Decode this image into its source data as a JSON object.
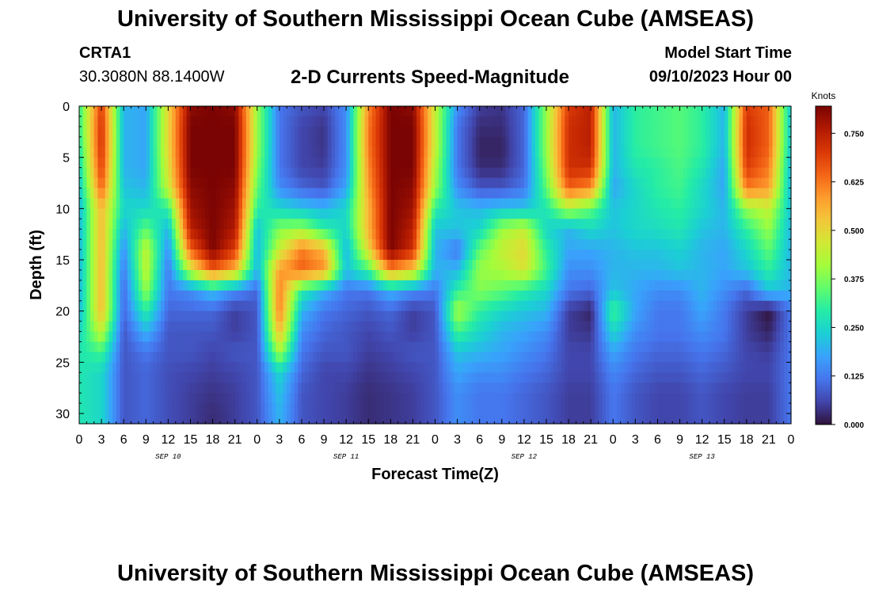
{
  "header": {
    "title": "University of Southern Mississippi Ocean Cube (AMSEAS)",
    "station": "CRTA1",
    "coordinates": "30.3080N  88.1400W",
    "subtitle": "2-D Currents Speed-Magnitude",
    "model_start_label": "Model Start Time",
    "model_start_value": "09/10/2023 Hour 00"
  },
  "footer": {
    "title": "University of Southern Mississippi Ocean Cube (AMSEAS)"
  },
  "chart_data": {
    "type": "heatmap",
    "xlabel": "Forecast Time(Z)",
    "ylabel": "Depth (ft)",
    "x_tick_labels": [
      "0",
      "3",
      "6",
      "9",
      "12",
      "15",
      "18",
      "21",
      "0",
      "3",
      "6",
      "9",
      "12",
      "15",
      "18",
      "21",
      "0",
      "3",
      "6",
      "9",
      "12",
      "15",
      "18",
      "21",
      "0",
      "3",
      "6",
      "9",
      "12",
      "15",
      "18",
      "21",
      "0"
    ],
    "x_range_hours": [
      0,
      96
    ],
    "date_labels": [
      {
        "label": "SEP 10",
        "hour": 12
      },
      {
        "label": "SEP 11",
        "hour": 36
      },
      {
        "label": "SEP 12",
        "hour": 60
      },
      {
        "label": "SEP 13",
        "hour": 84
      }
    ],
    "y_ticks": [
      0,
      5,
      10,
      15,
      20,
      25,
      30
    ],
    "y_range": [
      0,
      31
    ],
    "y_inverted": true,
    "colorbar": {
      "units": "Knots",
      "range": [
        0,
        0.82
      ],
      "ticks": [
        "0.000",
        "0.125",
        "0.250",
        "0.375",
        "0.500",
        "0.625",
        "0.750"
      ],
      "tick_values": [
        0,
        0.125,
        0.25,
        0.375,
        0.5,
        0.625,
        0.75
      ],
      "colormap": [
        "#30123b",
        "#4145ab",
        "#4675ed",
        "#39a2fc",
        "#1bcfd4",
        "#24eca6",
        "#61fc6c",
        "#a4fc3b",
        "#d1e834",
        "#f3c63a",
        "#fe9b2d",
        "#f36315",
        "#d93806",
        "#b11901",
        "#7a0403"
      ]
    },
    "depth_rows": [
      0,
      2,
      4,
      6,
      8,
      10,
      12,
      14,
      16,
      18,
      20,
      22,
      24,
      26,
      28,
      30
    ],
    "time_cols_hours": [
      0,
      3,
      6,
      9,
      12,
      15,
      18,
      21,
      24,
      27,
      30,
      33,
      36,
      39,
      42,
      45,
      48,
      51,
      54,
      57,
      60,
      63,
      66,
      69,
      72,
      75,
      78,
      81,
      84,
      87,
      90,
      93,
      96
    ],
    "speed_knots": [
      [
        0.3,
        0.7,
        0.2,
        0.18,
        0.5,
        0.8,
        0.82,
        0.8,
        0.4,
        0.12,
        0.08,
        0.06,
        0.15,
        0.6,
        0.82,
        0.8,
        0.45,
        0.15,
        0.05,
        0.04,
        0.1,
        0.4,
        0.7,
        0.75,
        0.2,
        0.3,
        0.32,
        0.34,
        0.3,
        0.2,
        0.7,
        0.65,
        0.22
      ],
      [
        0.3,
        0.72,
        0.2,
        0.18,
        0.5,
        0.82,
        0.82,
        0.82,
        0.4,
        0.12,
        0.06,
        0.04,
        0.15,
        0.62,
        0.82,
        0.82,
        0.45,
        0.12,
        0.03,
        0.03,
        0.1,
        0.4,
        0.72,
        0.75,
        0.2,
        0.3,
        0.32,
        0.34,
        0.3,
        0.2,
        0.72,
        0.65,
        0.22
      ],
      [
        0.28,
        0.72,
        0.2,
        0.18,
        0.5,
        0.82,
        0.82,
        0.82,
        0.4,
        0.12,
        0.06,
        0.04,
        0.15,
        0.62,
        0.82,
        0.82,
        0.45,
        0.12,
        0.02,
        0.02,
        0.1,
        0.4,
        0.72,
        0.75,
        0.2,
        0.3,
        0.32,
        0.34,
        0.3,
        0.2,
        0.72,
        0.65,
        0.22
      ],
      [
        0.25,
        0.7,
        0.2,
        0.18,
        0.48,
        0.82,
        0.82,
        0.82,
        0.38,
        0.12,
        0.06,
        0.05,
        0.15,
        0.6,
        0.82,
        0.82,
        0.42,
        0.12,
        0.03,
        0.03,
        0.1,
        0.38,
        0.72,
        0.72,
        0.2,
        0.28,
        0.3,
        0.33,
        0.28,
        0.18,
        0.7,
        0.62,
        0.2
      ],
      [
        0.22,
        0.65,
        0.22,
        0.2,
        0.45,
        0.8,
        0.82,
        0.8,
        0.35,
        0.15,
        0.1,
        0.08,
        0.18,
        0.58,
        0.82,
        0.8,
        0.4,
        0.15,
        0.08,
        0.08,
        0.12,
        0.35,
        0.65,
        0.6,
        0.18,
        0.25,
        0.3,
        0.32,
        0.25,
        0.18,
        0.62,
        0.58,
        0.2
      ],
      [
        0.2,
        0.55,
        0.25,
        0.25,
        0.3,
        0.78,
        0.82,
        0.78,
        0.3,
        0.25,
        0.22,
        0.2,
        0.25,
        0.55,
        0.82,
        0.78,
        0.3,
        0.22,
        0.2,
        0.22,
        0.22,
        0.28,
        0.42,
        0.35,
        0.22,
        0.25,
        0.28,
        0.3,
        0.25,
        0.2,
        0.4,
        0.45,
        0.22
      ],
      [
        0.2,
        0.55,
        0.2,
        0.35,
        0.2,
        0.75,
        0.82,
        0.76,
        0.22,
        0.38,
        0.4,
        0.3,
        0.25,
        0.55,
        0.82,
        0.75,
        0.22,
        0.22,
        0.25,
        0.4,
        0.45,
        0.25,
        0.2,
        0.25,
        0.22,
        0.25,
        0.26,
        0.28,
        0.22,
        0.2,
        0.3,
        0.4,
        0.2
      ],
      [
        0.2,
        0.55,
        0.15,
        0.45,
        0.15,
        0.65,
        0.82,
        0.7,
        0.2,
        0.45,
        0.62,
        0.55,
        0.2,
        0.5,
        0.82,
        0.72,
        0.2,
        0.12,
        0.35,
        0.45,
        0.5,
        0.3,
        0.18,
        0.18,
        0.2,
        0.22,
        0.22,
        0.24,
        0.2,
        0.18,
        0.25,
        0.35,
        0.2
      ],
      [
        0.2,
        0.55,
        0.12,
        0.45,
        0.12,
        0.45,
        0.65,
        0.55,
        0.2,
        0.58,
        0.65,
        0.6,
        0.22,
        0.32,
        0.6,
        0.52,
        0.2,
        0.2,
        0.4,
        0.42,
        0.48,
        0.32,
        0.15,
        0.15,
        0.2,
        0.2,
        0.2,
        0.22,
        0.2,
        0.18,
        0.22,
        0.3,
        0.2
      ],
      [
        0.2,
        0.55,
        0.1,
        0.4,
        0.12,
        0.15,
        0.22,
        0.15,
        0.1,
        0.62,
        0.3,
        0.2,
        0.12,
        0.12,
        0.2,
        0.15,
        0.12,
        0.3,
        0.38,
        0.35,
        0.3,
        0.25,
        0.12,
        0.1,
        0.22,
        0.18,
        0.15,
        0.15,
        0.2,
        0.15,
        0.1,
        0.22,
        0.2
      ],
      [
        0.2,
        0.55,
        0.1,
        0.3,
        0.1,
        0.1,
        0.1,
        0.05,
        0.08,
        0.62,
        0.2,
        0.12,
        0.1,
        0.08,
        0.1,
        0.05,
        0.08,
        0.42,
        0.3,
        0.25,
        0.22,
        0.2,
        0.05,
        0.02,
        0.32,
        0.18,
        0.12,
        0.12,
        0.18,
        0.12,
        0.05,
        0.0,
        0.12
      ],
      [
        0.25,
        0.45,
        0.08,
        0.2,
        0.08,
        0.08,
        0.08,
        0.05,
        0.08,
        0.55,
        0.15,
        0.1,
        0.08,
        0.06,
        0.08,
        0.05,
        0.08,
        0.32,
        0.25,
        0.2,
        0.18,
        0.15,
        0.05,
        0.04,
        0.25,
        0.15,
        0.12,
        0.12,
        0.15,
        0.12,
        0.05,
        0.02,
        0.12
      ],
      [
        0.28,
        0.32,
        0.08,
        0.12,
        0.08,
        0.08,
        0.06,
        0.08,
        0.08,
        0.42,
        0.12,
        0.08,
        0.08,
        0.05,
        0.06,
        0.08,
        0.08,
        0.22,
        0.2,
        0.18,
        0.15,
        0.12,
        0.06,
        0.06,
        0.18,
        0.12,
        0.1,
        0.1,
        0.12,
        0.1,
        0.06,
        0.05,
        0.12
      ],
      [
        0.28,
        0.25,
        0.08,
        0.1,
        0.07,
        0.06,
        0.05,
        0.06,
        0.08,
        0.25,
        0.1,
        0.06,
        0.06,
        0.04,
        0.05,
        0.06,
        0.08,
        0.18,
        0.15,
        0.15,
        0.12,
        0.1,
        0.06,
        0.06,
        0.14,
        0.1,
        0.08,
        0.08,
        0.1,
        0.08,
        0.06,
        0.06,
        0.12
      ],
      [
        0.28,
        0.25,
        0.08,
        0.1,
        0.07,
        0.05,
        0.04,
        0.05,
        0.08,
        0.22,
        0.08,
        0.06,
        0.05,
        0.03,
        0.04,
        0.05,
        0.08,
        0.15,
        0.12,
        0.12,
        0.1,
        0.08,
        0.05,
        0.05,
        0.12,
        0.08,
        0.06,
        0.06,
        0.08,
        0.06,
        0.05,
        0.05,
        0.12
      ],
      [
        0.28,
        0.25,
        0.08,
        0.1,
        0.07,
        0.05,
        0.03,
        0.05,
        0.08,
        0.2,
        0.08,
        0.06,
        0.05,
        0.03,
        0.04,
        0.05,
        0.08,
        0.15,
        0.12,
        0.12,
        0.1,
        0.08,
        0.05,
        0.05,
        0.12,
        0.08,
        0.06,
        0.06,
        0.08,
        0.06,
        0.05,
        0.05,
        0.12
      ]
    ]
  }
}
